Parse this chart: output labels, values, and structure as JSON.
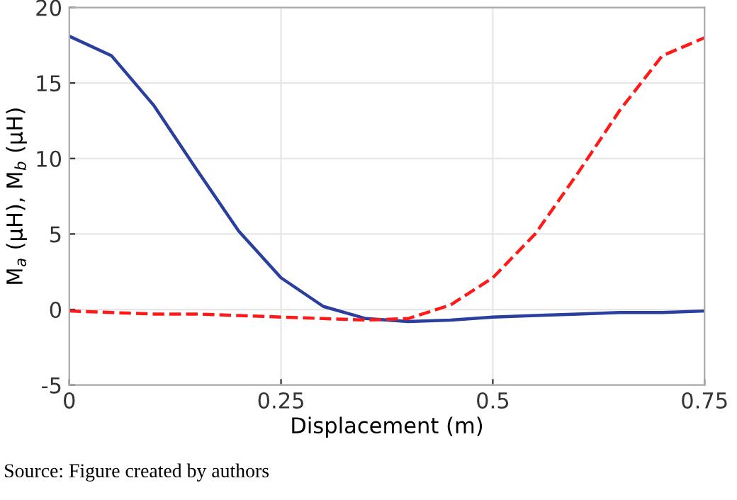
{
  "chart_data": {
    "type": "line",
    "xlabel": "Displacement (m)",
    "ylabel": "M$_{a}$ (μH), M$_{b}$ (μH)",
    "annotations": [
      "Source: Figure created by authors"
    ],
    "x": [
      0,
      0.05,
      0.1,
      0.15,
      0.2,
      0.25,
      0.3,
      0.35,
      0.4,
      0.45,
      0.5,
      0.55,
      0.6,
      0.65,
      0.7,
      0.75
    ],
    "series": [
      {
        "color": "#2b3f9e",
        "line_style": "solid",
        "values": [
          18.1,
          16.8,
          13.5,
          9.3,
          5.2,
          2.1,
          0.2,
          -0.6,
          -0.8,
          -0.7,
          -0.5,
          -0.4,
          -0.3,
          -0.2,
          -0.2,
          -0.1
        ]
      },
      {
        "color": "#ff1a1a",
        "line_style": "dashed",
        "values": [
          -0.1,
          -0.2,
          -0.3,
          -0.3,
          -0.4,
          -0.5,
          -0.6,
          -0.7,
          -0.6,
          0.3,
          2.1,
          5.0,
          9.0,
          13.2,
          16.8,
          18.0
        ]
      }
    ],
    "xlim": [
      0,
      0.75
    ],
    "ylim": [
      -5,
      20
    ],
    "xticks": [
      0,
      0.25,
      0.5,
      0.75
    ],
    "yticks": [
      -5,
      0,
      5,
      10,
      15,
      20
    ],
    "grid": true,
    "legend": false
  }
}
